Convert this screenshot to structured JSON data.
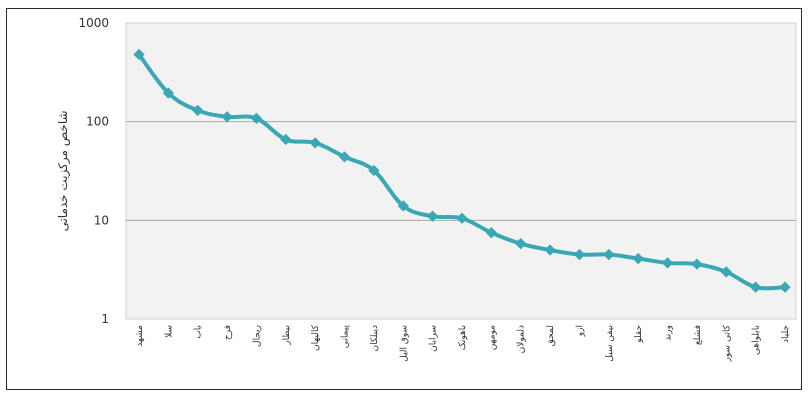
{
  "chart_data": {
    "type": "line",
    "ylabel": "شاخص مرکزیت خدماتی",
    "yscale": "log",
    "ylim": [
      1,
      1000
    ],
    "yticks": [
      "1",
      "10",
      "100",
      "1000"
    ],
    "grid": "horizontal",
    "line_color": "#3aa8b4",
    "categories": [
      "مشهد",
      "سلا",
      "باب",
      "فرح",
      "ریجال",
      "بیطار",
      "کالیهان",
      "پیمانی",
      "دیبلکان",
      "سوق الیل",
      "سرابان",
      "باهونک",
      "مومهن",
      "دلمولان",
      "لمحق",
      "ازو",
      "بیفن سبل",
      "حقلو",
      "ورند",
      "فشلع",
      "کاتی سور",
      "بابلواهی",
      "جلیاد"
    ],
    "values": [
      480,
      195,
      130,
      112,
      108,
      66,
      61,
      44,
      32,
      14,
      11,
      10.5,
      7.5,
      5.8,
      5.0,
      4.5,
      4.5,
      4.1,
      3.7,
      3.6,
      3.0,
      2.1,
      2.1
    ]
  }
}
